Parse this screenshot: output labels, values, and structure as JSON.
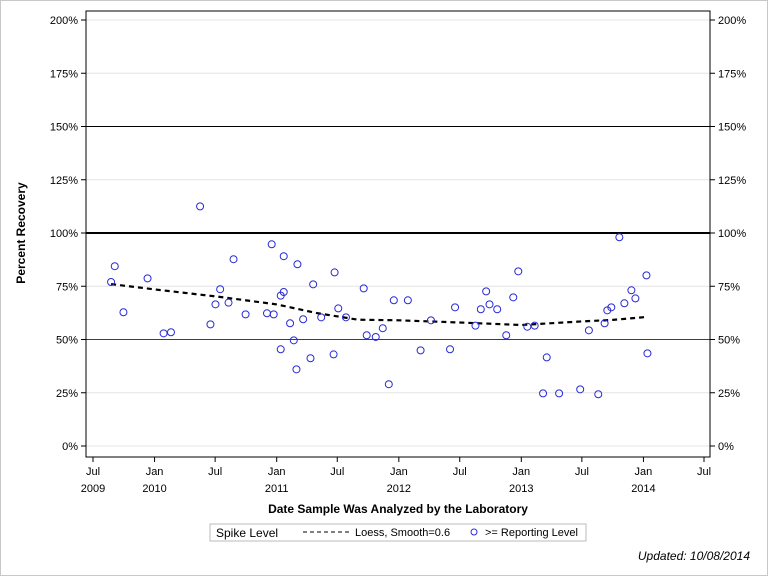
{
  "chart_data": {
    "type": "scatter",
    "xlabel": "Date Sample Was Analyzed by the Laboratory",
    "ylabel": "Percent Recovery",
    "xlim": [
      "2009-06-01",
      "2014-08-01"
    ],
    "ylim": [
      0,
      200
    ],
    "grid": true,
    "y_ticks": [
      "0%",
      "25%",
      "50%",
      "75%",
      "100%",
      "125%",
      "150%",
      "175%",
      "200%"
    ],
    "y_tick_values": [
      0,
      25,
      50,
      75,
      100,
      125,
      150,
      175,
      200
    ],
    "x_ticks": [
      {
        "date": "2009-07-01",
        "label": "Jul",
        "year": "2009"
      },
      {
        "date": "2010-01-01",
        "label": "Jan",
        "year": "2010"
      },
      {
        "date": "2010-07-01",
        "label": "Jul",
        "year": ""
      },
      {
        "date": "2011-01-01",
        "label": "Jan",
        "year": "2011"
      },
      {
        "date": "2011-07-01",
        "label": "Jul",
        "year": ""
      },
      {
        "date": "2012-01-01",
        "label": "Jan",
        "year": "2012"
      },
      {
        "date": "2012-07-01",
        "label": "Jul",
        "year": ""
      },
      {
        "date": "2013-01-01",
        "label": "Jan",
        "year": "2013"
      },
      {
        "date": "2013-07-01",
        "label": "Jul",
        "year": ""
      },
      {
        "date": "2014-01-01",
        "label": "Jan",
        "year": "2014"
      },
      {
        "date": "2014-07-01",
        "label": "Jul",
        "year": ""
      }
    ],
    "reference_lines": [
      {
        "value": 150,
        "color": "#000000",
        "weight": "thin"
      },
      {
        "value": 100,
        "color": "#000000",
        "weight": "thick"
      },
      {
        "value": 50,
        "color": "#2b2bd6",
        "weight": "thin",
        "name": "Spike Level"
      }
    ],
    "series": [
      {
        "name": ">= Reporting Level",
        "type": "scatter",
        "color": "#2b2bd6",
        "points": [
          [
            "2009-08-24",
            77
          ],
          [
            "2009-09-04",
            84.4
          ],
          [
            "2009-09-30",
            62.8
          ],
          [
            "2009-12-11",
            78.7
          ],
          [
            "2010-01-28",
            52.9
          ],
          [
            "2010-02-19",
            53.4
          ],
          [
            "2010-05-17",
            112.5
          ],
          [
            "2010-06-17",
            57.1
          ],
          [
            "2010-07-02",
            66.5
          ],
          [
            "2010-07-16",
            73.6
          ],
          [
            "2010-08-10",
            67.3
          ],
          [
            "2010-08-25",
            87.7
          ],
          [
            "2010-09-30",
            61.8
          ],
          [
            "2010-12-03",
            62.3
          ],
          [
            "2010-12-17",
            94.7
          ],
          [
            "2010-12-23",
            61.8
          ],
          [
            "2011-01-13",
            45.4
          ],
          [
            "2011-01-13",
            70.6
          ],
          [
            "2011-01-22",
            72.3
          ],
          [
            "2011-01-22",
            89.1
          ],
          [
            "2011-02-10",
            57.6
          ],
          [
            "2011-02-21",
            49.6
          ],
          [
            "2011-03-01",
            36
          ],
          [
            "2011-03-04",
            85.3
          ],
          [
            "2011-03-21",
            59.5
          ],
          [
            "2011-04-12",
            41.2
          ],
          [
            "2011-04-20",
            75.9
          ],
          [
            "2011-05-14",
            60.4
          ],
          [
            "2011-06-20",
            43
          ],
          [
            "2011-06-23",
            81.5
          ],
          [
            "2011-07-04",
            64.6
          ],
          [
            "2011-07-27",
            60.4
          ],
          [
            "2011-09-18",
            74
          ],
          [
            "2011-09-27",
            52
          ],
          [
            "2011-10-24",
            51.2
          ],
          [
            "2011-11-14",
            55.3
          ],
          [
            "2011-12-02",
            29
          ],
          [
            "2011-12-17",
            68.4
          ],
          [
            "2012-01-28",
            68.4
          ],
          [
            "2012-03-06",
            44.9
          ],
          [
            "2012-04-06",
            59
          ],
          [
            "2012-06-02",
            45.4
          ],
          [
            "2012-06-17",
            65.1
          ],
          [
            "2012-08-17",
            56.5
          ],
          [
            "2012-09-02",
            64.2
          ],
          [
            "2012-09-18",
            72.6
          ],
          [
            "2012-09-28",
            66.5
          ],
          [
            "2012-10-21",
            64.2
          ],
          [
            "2012-11-17",
            52
          ],
          [
            "2012-12-08",
            69.8
          ],
          [
            "2012-12-23",
            82
          ],
          [
            "2013-01-19",
            56
          ],
          [
            "2013-02-10",
            56.5
          ],
          [
            "2013-03-07",
            24.7
          ],
          [
            "2013-03-18",
            41.6
          ],
          [
            "2013-04-24",
            24.7
          ],
          [
            "2013-06-26",
            26.6
          ],
          [
            "2013-07-22",
            54.3
          ],
          [
            "2013-08-19",
            24.3
          ],
          [
            "2013-09-07",
            57.6
          ],
          [
            "2013-09-15",
            63.7
          ],
          [
            "2013-09-27",
            65.1
          ],
          [
            "2013-10-21",
            98
          ],
          [
            "2013-11-05",
            67
          ],
          [
            "2013-11-26",
            73.1
          ],
          [
            "2013-12-08",
            69.3
          ],
          [
            "2014-01-10",
            80.1
          ],
          [
            "2014-01-13",
            43.5
          ]
        ]
      },
      {
        "name": "Loess, Smooth=0.6",
        "type": "line",
        "style": "dashed",
        "color": "#000000",
        "points": [
          [
            "2009-08-24",
            76
          ],
          [
            "2010-01-01",
            73.5
          ],
          [
            "2010-07-15",
            70
          ],
          [
            "2011-01-01",
            66.5
          ],
          [
            "2011-05-01",
            62.4
          ],
          [
            "2011-09-01",
            59.3
          ],
          [
            "2012-01-01",
            59
          ],
          [
            "2012-07-01",
            58
          ],
          [
            "2013-01-01",
            56.8
          ],
          [
            "2013-07-01",
            58.5
          ],
          [
            "2013-10-01",
            59.2
          ],
          [
            "2014-01-13",
            60.6
          ]
        ]
      }
    ],
    "legend": {
      "placement": "bottom",
      "items": [
        "Spike Level",
        "Loess, Smooth=0.6",
        ">= Reporting Level"
      ]
    }
  },
  "footer": {
    "updated": "Updated: 10/08/2014"
  }
}
